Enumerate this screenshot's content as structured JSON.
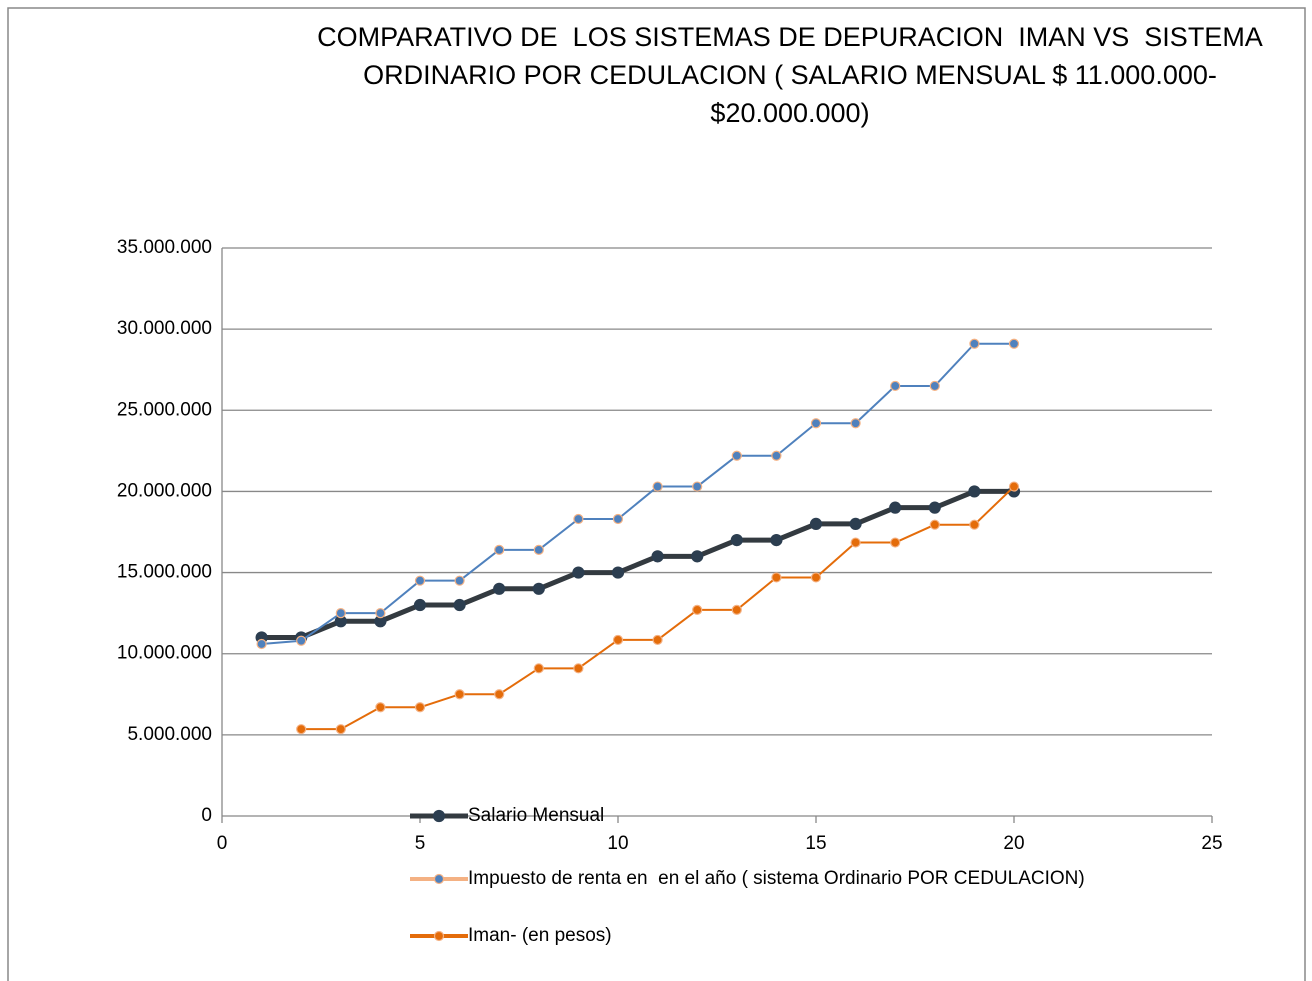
{
  "chart_data": {
    "type": "line",
    "title": "COMPARATIVO DE  LOS SISTEMAS DE DEPURACION  IMAN VS  SISTEMA ORDINARIO POR CEDULACION ( SALARIO MENSUAL $ 11.000.000- $20.000.000)",
    "x": [
      1,
      2,
      3,
      4,
      5,
      6,
      7,
      8,
      9,
      10,
      11,
      12,
      13,
      14,
      15,
      16,
      17,
      18,
      19,
      20
    ],
    "series": [
      {
        "name": "Salario Mensual",
        "color": "#333a40",
        "values": [
          11000000,
          11000000,
          12000000,
          12000000,
          13000000,
          13000000,
          14000000,
          14000000,
          15000000,
          15000000,
          16000000,
          16000000,
          17000000,
          17000000,
          18000000,
          18000000,
          19000000,
          19000000,
          20000000,
          20000000
        ]
      },
      {
        "name": "Impuesto de renta en  en el año ( sistema Ordinario POR CEDULACION)",
        "color": "#4f81bd",
        "values": [
          10600000,
          10800000,
          12500000,
          12500000,
          14500000,
          14500000,
          16400000,
          16400000,
          18300000,
          18300000,
          20300000,
          20300000,
          22200000,
          22200000,
          24200000,
          24200000,
          26500000,
          26500000,
          29100000,
          29100000
        ]
      },
      {
        "name": "Iman- (en pesos)",
        "color": "#e46c0a",
        "values": [
          null,
          5350000,
          5350000,
          6700000,
          6700000,
          7500000,
          7500000,
          9100000,
          9100000,
          10850000,
          10850000,
          12700000,
          12700000,
          14700000,
          14700000,
          16850000,
          16850000,
          17950000,
          17950000,
          20300000
        ]
      }
    ],
    "xlim": [
      0,
      25
    ],
    "xticks": [
      0,
      5,
      10,
      15,
      20,
      25
    ],
    "ylim": [
      0,
      35000000
    ],
    "yticks": [
      0,
      {
        "value": 5000000,
        "label": "5.000.000"
      },
      {
        "value": 10000000,
        "label": "10.000.000"
      },
      {
        "value": 15000000,
        "label": "15.000.000"
      },
      {
        "value": 20000000,
        "label": "20.000.000"
      },
      {
        "value": 25000000,
        "label": "25.000.000"
      },
      {
        "value": 30000000,
        "label": "30.000.000"
      },
      {
        "value": 35000000,
        "label": "35.000.000"
      }
    ],
    "grid": true
  }
}
